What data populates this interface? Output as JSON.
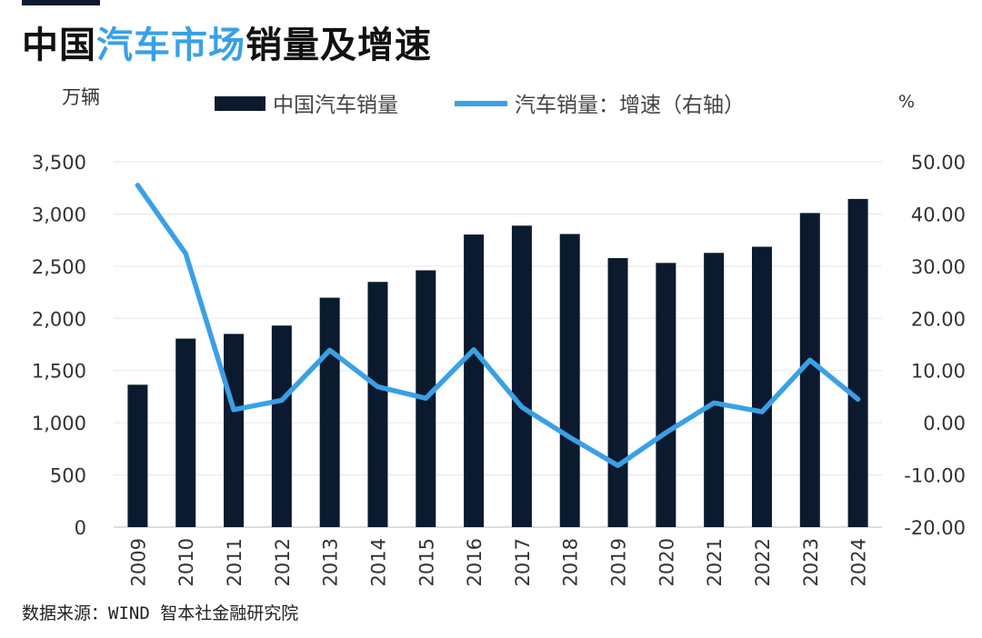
{
  "header": {
    "title_part1": "中国",
    "title_highlight": "汽车市场",
    "title_part2": "销量及增速"
  },
  "footer": {
    "source": "数据来源：WIND 智本社金融研究院"
  },
  "colors": {
    "bar": "#0b1a2e",
    "line": "#3aa0e6",
    "accent_bar": "#0b1a2e"
  },
  "chart_data": {
    "type": "bar",
    "categories": [
      "2009",
      "2010",
      "2011",
      "2012",
      "2013",
      "2014",
      "2015",
      "2016",
      "2017",
      "2018",
      "2019",
      "2020",
      "2021",
      "2022",
      "2023",
      "2024"
    ],
    "series": [
      {
        "name": "中国汽车销量",
        "type": "bar",
        "axis": "left",
        "values": [
          1364,
          1806,
          1851,
          1931,
          2198,
          2349,
          2460,
          2803,
          2888,
          2808,
          2577,
          2531,
          2627,
          2686,
          3009,
          3144
        ]
      },
      {
        "name": "汽车销量：增速（右轴）",
        "type": "line",
        "axis": "right",
        "values": [
          45.5,
          32.4,
          2.5,
          4.3,
          13.9,
          6.9,
          4.7,
          14.0,
          3.0,
          -2.8,
          -8.2,
          -1.9,
          3.8,
          2.1,
          12.0,
          4.5
        ]
      }
    ],
    "ylabel_left": "万辆",
    "ylabel_right": "%",
    "ylim_left": [
      0,
      3500
    ],
    "ylim_right": [
      -20,
      50
    ],
    "yticks_left": [
      "0",
      "500",
      "1,000",
      "1,500",
      "2,000",
      "2,500",
      "3,000",
      "3,500"
    ],
    "yticks_right": [
      "-20.00",
      "-10.00",
      "0.00",
      "10.00",
      "20.00",
      "30.00",
      "40.00",
      "50.00"
    ],
    "legend_position": "top-center",
    "grid": true
  }
}
